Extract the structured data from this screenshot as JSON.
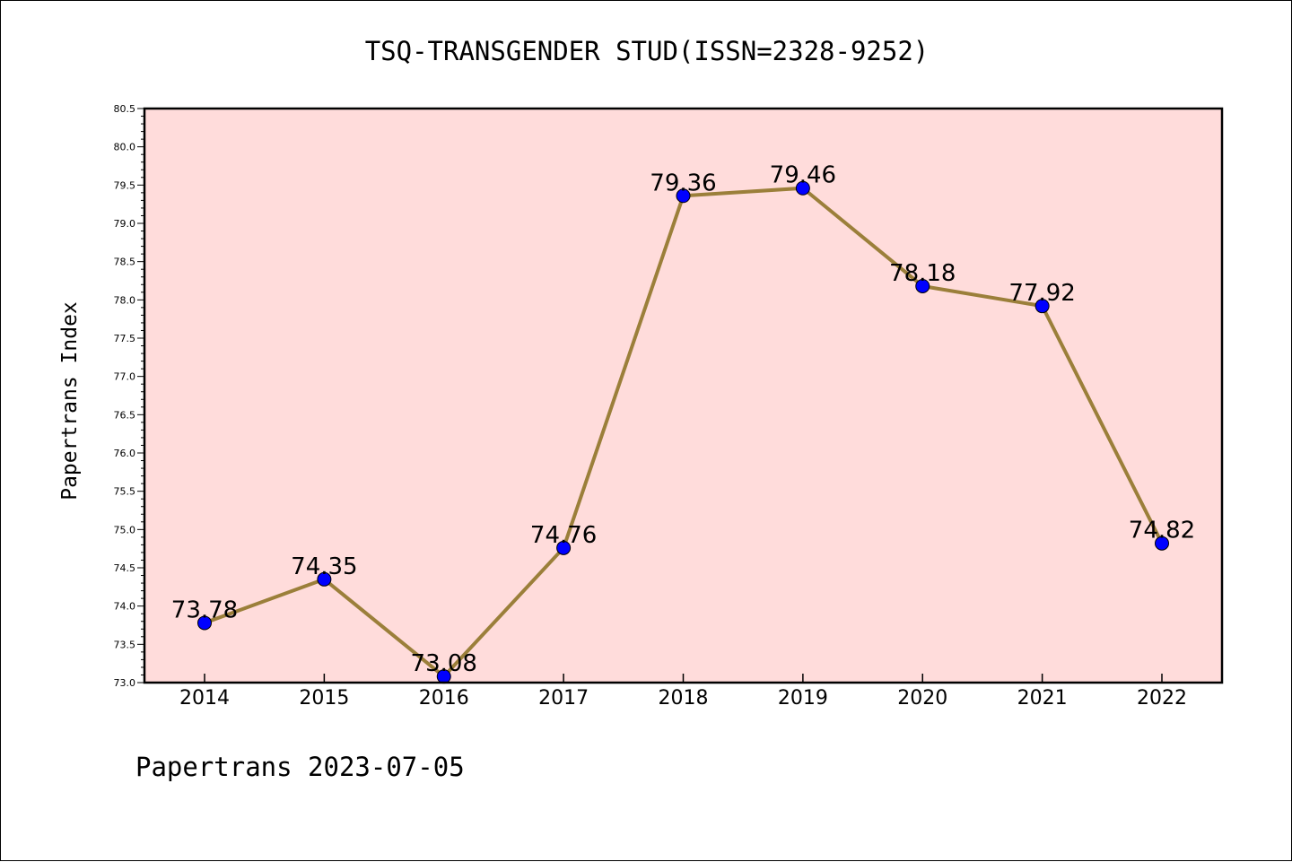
{
  "chart_data": {
    "type": "line",
    "title": "TSQ-TRANSGENDER STUD(ISSN=2328-9252)",
    "ylabel": "Papertrans Index",
    "xlabel": "",
    "footer": "Papertrans 2023-07-05",
    "categories": [
      "2014",
      "2015",
      "2016",
      "2017",
      "2018",
      "2019",
      "2020",
      "2021",
      "2022"
    ],
    "values": [
      73.78,
      74.35,
      73.08,
      74.76,
      79.36,
      79.46,
      78.18,
      77.92,
      74.82
    ],
    "data_labels": [
      "73.78",
      "74.35",
      "73.08",
      "74.76",
      "79.36",
      "79.46",
      "78.18",
      "77.92",
      "74.82"
    ],
    "ylim": [
      73.0,
      80.5
    ],
    "yticks": [
      "73.0",
      "73.5",
      "74.0",
      "74.5",
      "75.0",
      "75.5",
      "76.0",
      "76.5",
      "77.0",
      "77.5",
      "78.0",
      "78.5",
      "79.0",
      "79.5",
      "80.0",
      "80.5"
    ],
    "grid": false,
    "legend": "none",
    "colors": {
      "plot_background": "#ffdcdb",
      "line": "#9b7f3a",
      "marker": "#0000ff"
    }
  }
}
